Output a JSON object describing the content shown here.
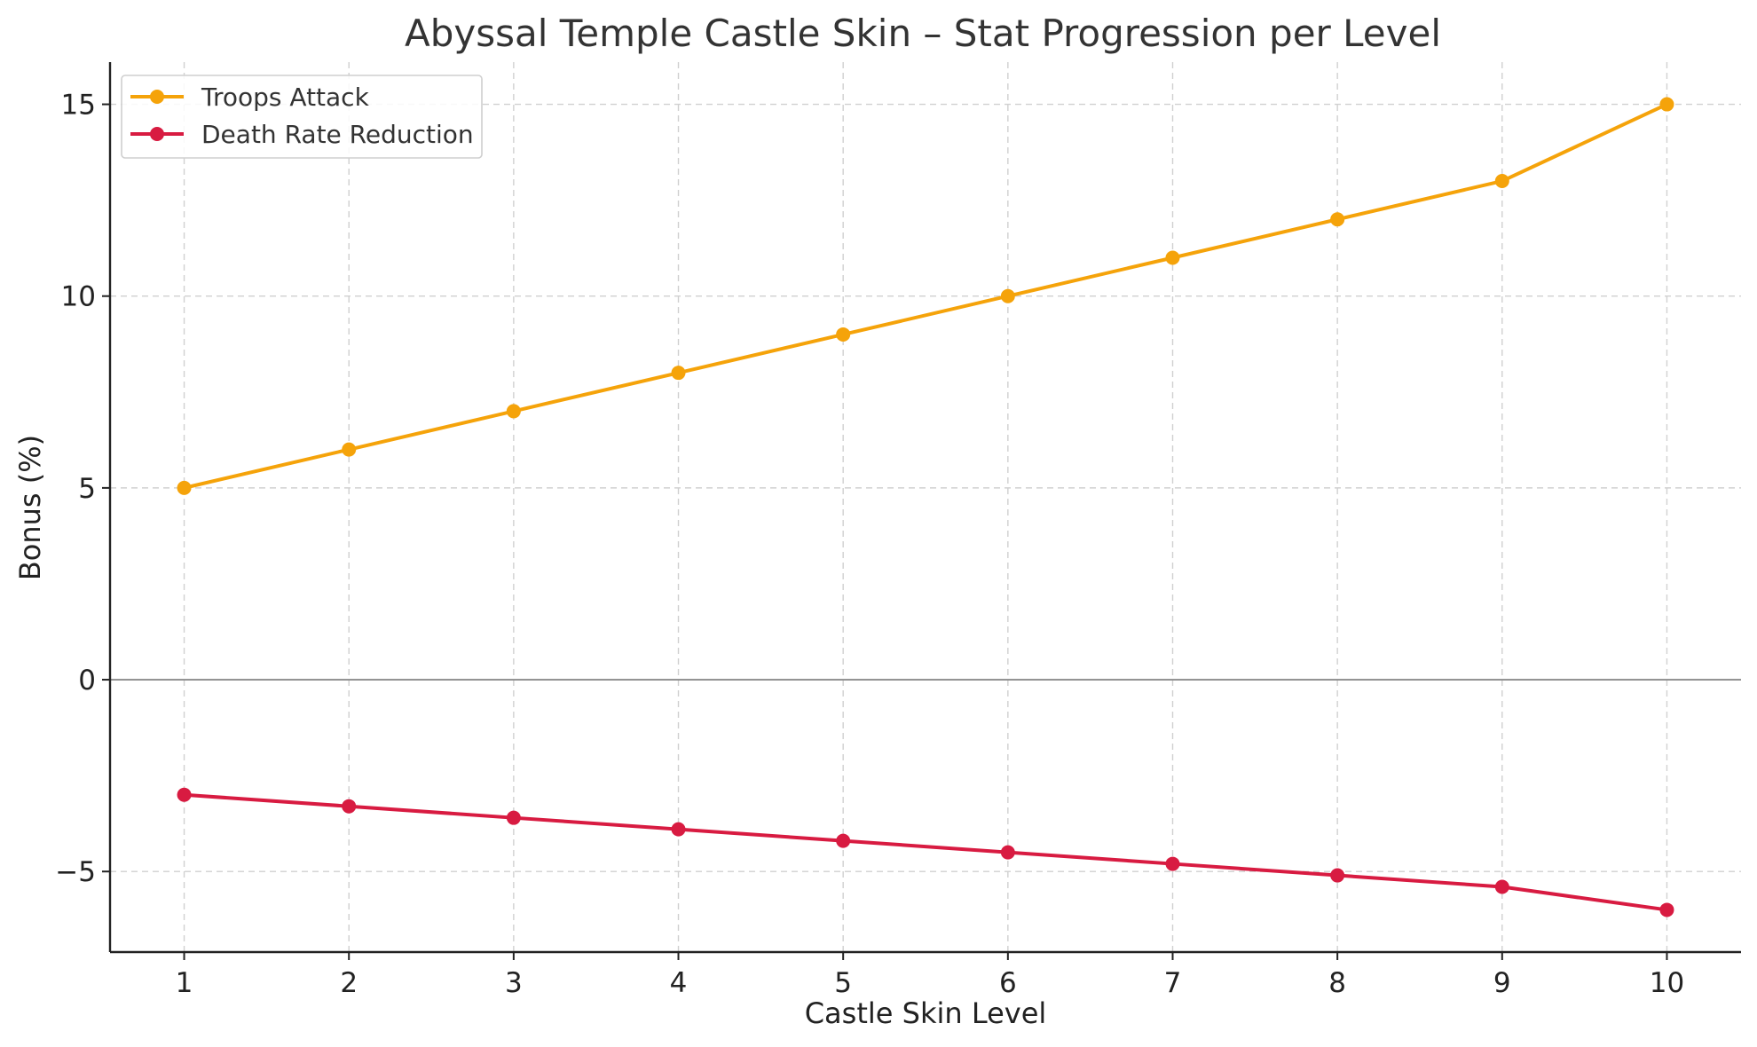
{
  "chart_data": {
    "type": "line",
    "title": "Abyssal Temple Castle Skin – Stat Progression per Level",
    "xlabel": "Castle Skin Level",
    "ylabel": "Bonus (%)",
    "x": [
      1,
      2,
      3,
      4,
      5,
      6,
      7,
      8,
      9,
      10
    ],
    "x_ticks": [
      "1",
      "2",
      "3",
      "4",
      "5",
      "6",
      "7",
      "8",
      "9",
      "10"
    ],
    "y_ticks": [
      "−5",
      "0",
      "5",
      "10",
      "15"
    ],
    "y_tick_values": [
      -5,
      0,
      5,
      10,
      15
    ],
    "xlim": [
      0.55,
      10.45
    ],
    "ylim": [
      -7.1,
      16.1
    ],
    "grid": true,
    "legend_position": "top-left",
    "zero_line": true,
    "series": [
      {
        "name": "Troops Attack",
        "color": "#f5a30a",
        "values": [
          5,
          6,
          7,
          8,
          9,
          10,
          11,
          12,
          13,
          15
        ]
      },
      {
        "name": "Death Rate Reduction",
        "color": "#d81b41",
        "values": [
          -3,
          -3.3,
          -3.6,
          -3.9,
          -4.2,
          -4.5,
          -4.8,
          -5.1,
          -5.4,
          -6
        ]
      }
    ]
  }
}
